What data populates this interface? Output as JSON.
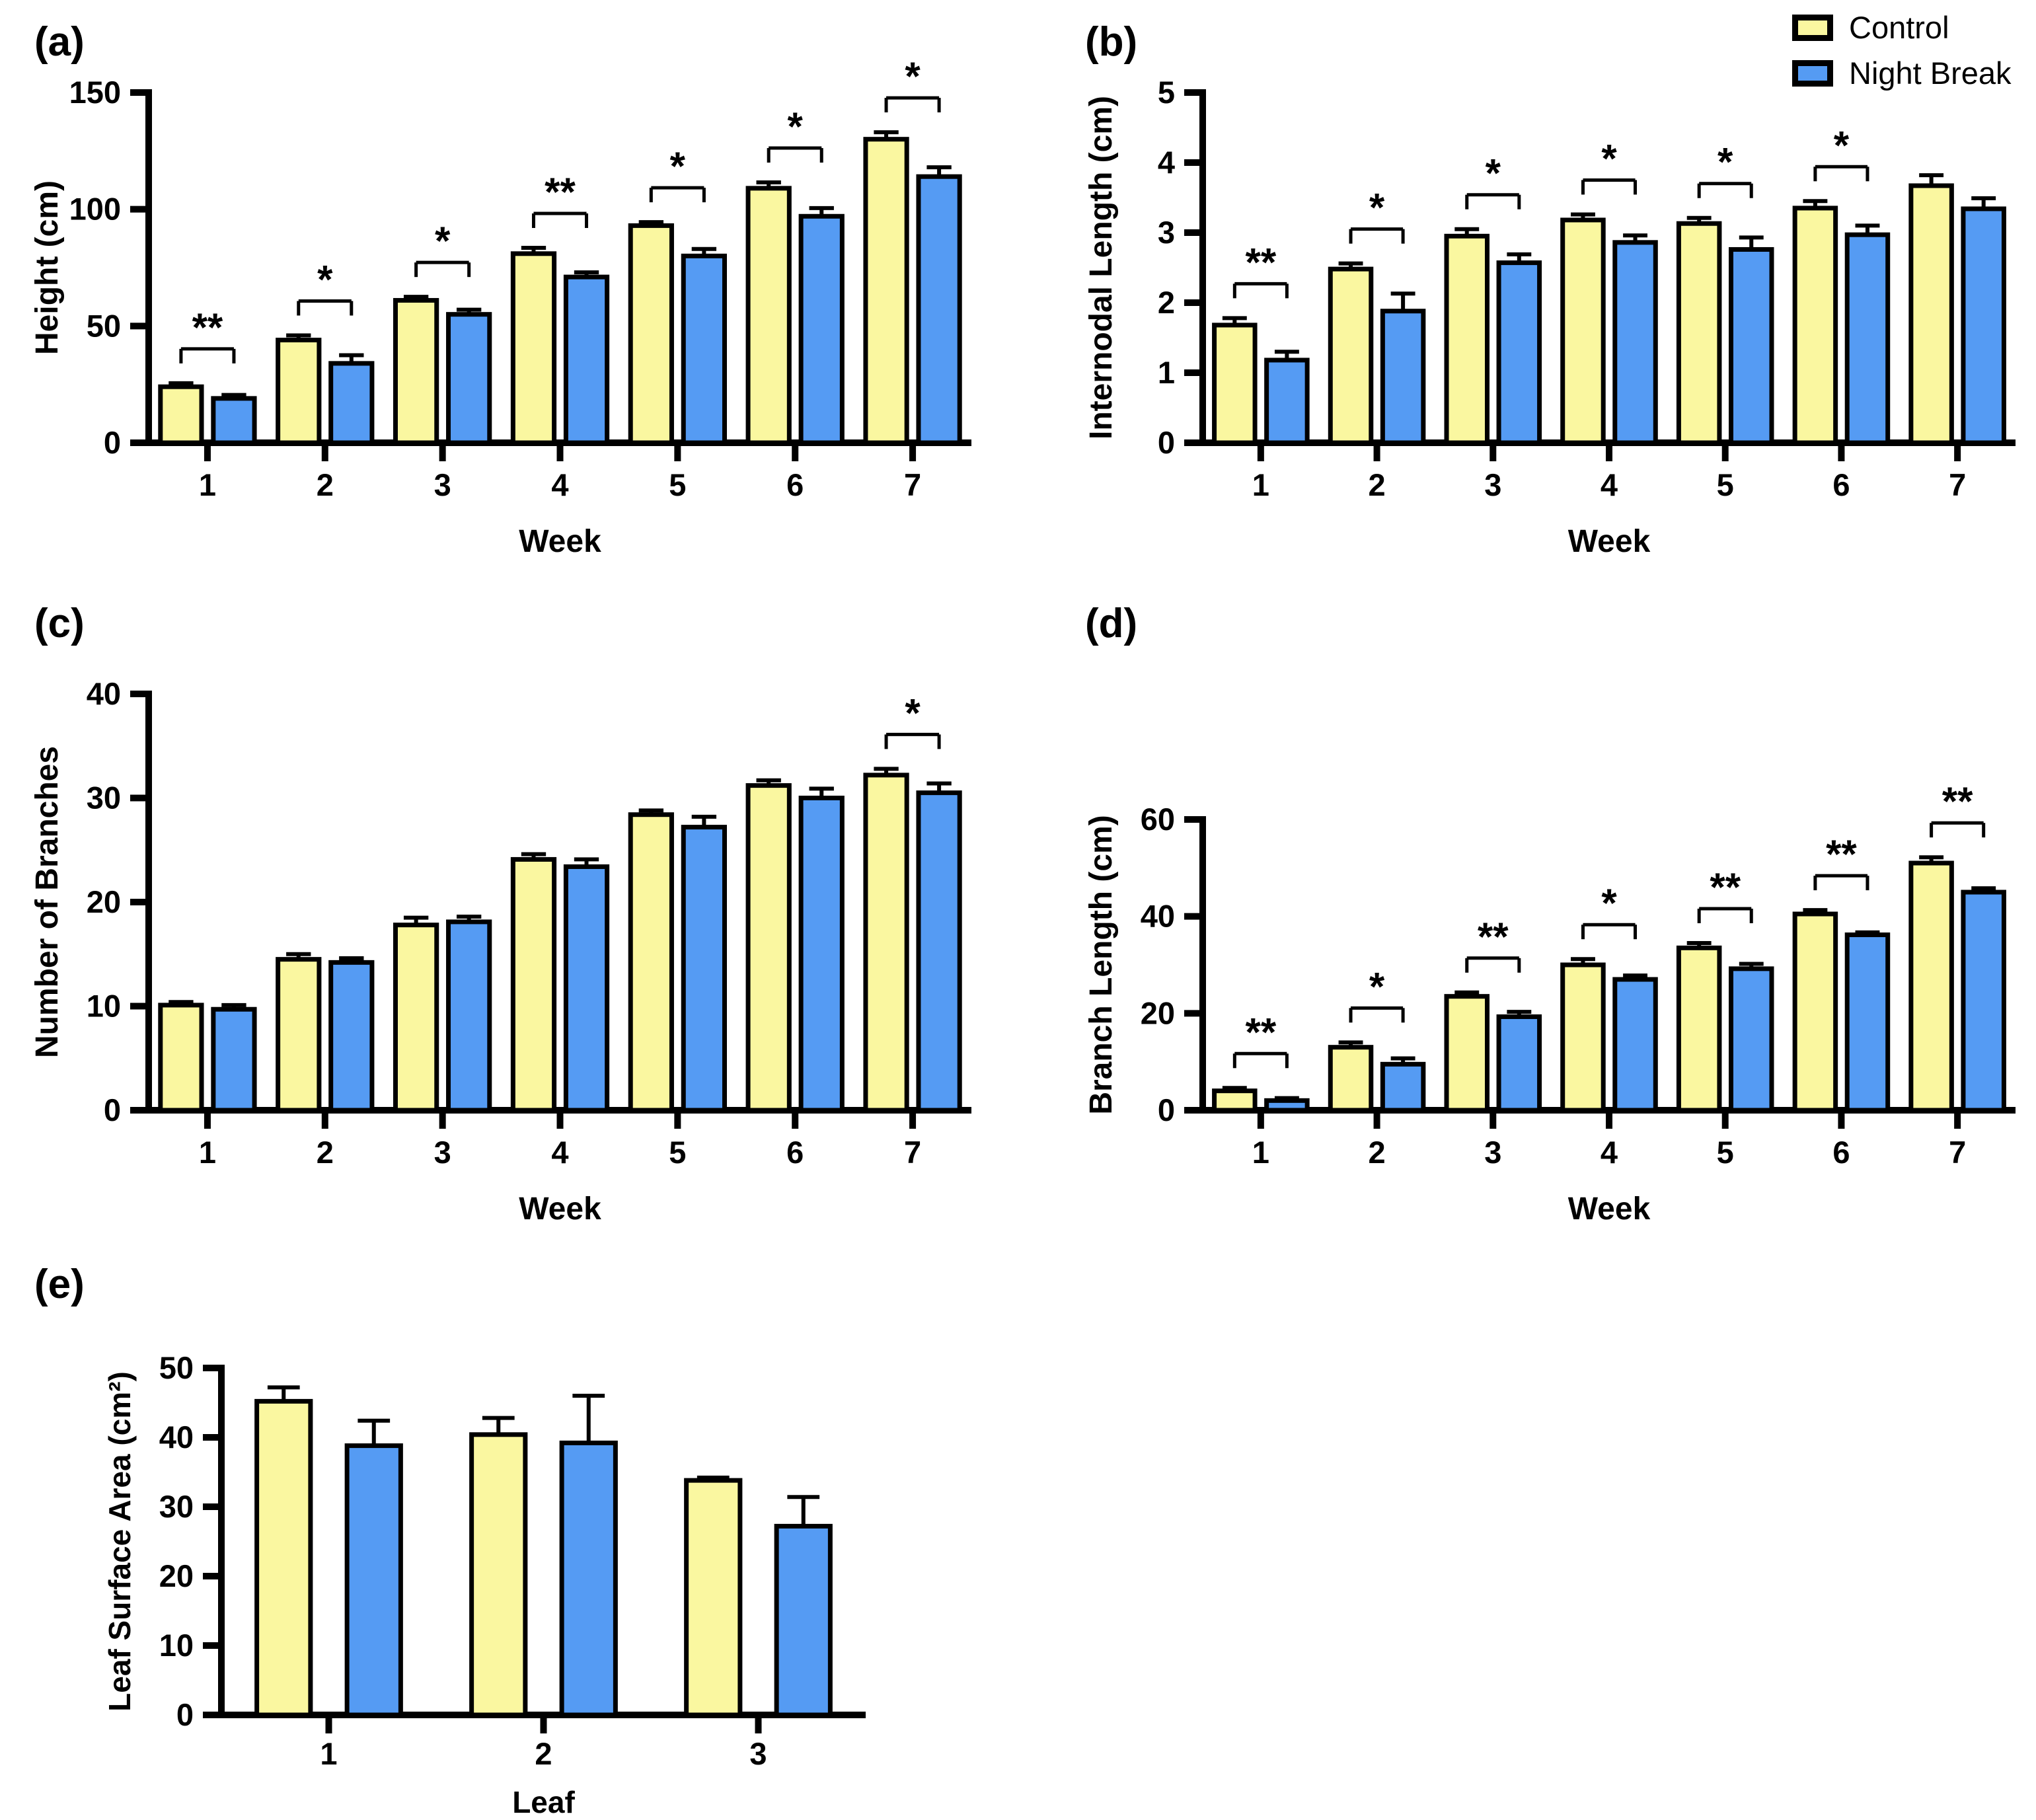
{
  "legend": {
    "items": [
      {
        "label": "Control",
        "color": "#FAF7A0"
      },
      {
        "label": "Night Break",
        "color": "#559BF3"
      }
    ]
  },
  "chart_data": [
    {
      "panel": "(a)",
      "type": "bar",
      "title": "",
      "xlabel": "Week",
      "ylabel": "Height (cm)",
      "categories": [
        "1",
        "2",
        "3",
        "4",
        "5",
        "6",
        "7"
      ],
      "ylim": [
        0,
        150
      ],
      "yticks": [
        0,
        50,
        100,
        150
      ],
      "grid": false,
      "legend_position": "none",
      "series": [
        {
          "name": "Control",
          "values": [
            24,
            44,
            61,
            81,
            93,
            109,
            130
          ],
          "errors": [
            1.5,
            2,
            1.5,
            2.5,
            1.5,
            2.5,
            3
          ]
        },
        {
          "name": "Night Break",
          "values": [
            19,
            34,
            55,
            71,
            80,
            97,
            114
          ],
          "errors": [
            1.5,
            3.5,
            2,
            2,
            3,
            3.5,
            4
          ]
        }
      ],
      "significance": [
        "**",
        "*",
        "*",
        "**",
        "*",
        "*",
        "*"
      ]
    },
    {
      "panel": "(b)",
      "type": "bar",
      "title": "",
      "xlabel": "Week",
      "ylabel": "Internodal Length (cm)",
      "categories": [
        "1",
        "2",
        "3",
        "4",
        "5",
        "6",
        "7"
      ],
      "ylim": [
        0,
        5
      ],
      "yticks": [
        0,
        1,
        2,
        3,
        4,
        5
      ],
      "grid": false,
      "legend_position": "top-right",
      "series": [
        {
          "name": "Control",
          "values": [
            1.68,
            2.48,
            2.95,
            3.18,
            3.13,
            3.35,
            3.67
          ],
          "errors": [
            0.1,
            0.08,
            0.1,
            0.08,
            0.08,
            0.1,
            0.15
          ]
        },
        {
          "name": "Night Break",
          "values": [
            1.18,
            1.88,
            2.57,
            2.86,
            2.76,
            2.97,
            3.34
          ],
          "errors": [
            0.12,
            0.25,
            0.12,
            0.1,
            0.17,
            0.13,
            0.15
          ]
        }
      ],
      "significance": [
        "**",
        "*",
        "*",
        "*",
        "*",
        "*",
        null
      ]
    },
    {
      "panel": "(c)",
      "type": "bar",
      "title": "",
      "xlabel": "Week",
      "ylabel": "Number of Branches",
      "categories": [
        "1",
        "2",
        "3",
        "4",
        "5",
        "6",
        "7"
      ],
      "ylim": [
        0,
        40
      ],
      "yticks": [
        0,
        10,
        20,
        30,
        40
      ],
      "grid": false,
      "legend_position": "none",
      "series": [
        {
          "name": "Control",
          "values": [
            10.1,
            14.5,
            17.8,
            24.1,
            28.4,
            31.2,
            32.2
          ],
          "errors": [
            0.3,
            0.5,
            0.7,
            0.5,
            0.4,
            0.5,
            0.6
          ]
        },
        {
          "name": "Night Break",
          "values": [
            9.7,
            14.2,
            18.1,
            23.4,
            27.2,
            30.0,
            30.5
          ],
          "errors": [
            0.4,
            0.4,
            0.5,
            0.7,
            1.0,
            0.9,
            0.9
          ]
        }
      ],
      "significance": [
        null,
        null,
        null,
        null,
        null,
        null,
        "*"
      ]
    },
    {
      "panel": "(d)",
      "type": "bar",
      "title": "",
      "xlabel": "Week",
      "ylabel": "Branch Length (cm)",
      "categories": [
        "1",
        "2",
        "3",
        "4",
        "5",
        "6",
        "7"
      ],
      "ylim": [
        0,
        60
      ],
      "yticks": [
        0,
        20,
        40,
        60
      ],
      "grid": false,
      "legend_position": "none",
      "series": [
        {
          "name": "Control",
          "values": [
            4,
            13,
            23.5,
            30,
            33.5,
            40.5,
            51
          ],
          "errors": [
            0.6,
            1.0,
            0.8,
            1.2,
            1.0,
            0.8,
            1.2
          ]
        },
        {
          "name": "Night Break",
          "values": [
            2,
            9.5,
            19.3,
            27,
            29.2,
            36.2,
            45
          ],
          "errors": [
            0.5,
            1.2,
            1.0,
            0.8,
            1.0,
            0.5,
            0.8
          ]
        }
      ],
      "significance": [
        "**",
        "*",
        "**",
        "*",
        "**",
        "**",
        "**"
      ]
    },
    {
      "panel": "(e)",
      "type": "bar",
      "title": "",
      "xlabel": "Leaf",
      "ylabel": "Leaf Surface Area (cm²)",
      "categories": [
        "1",
        "2",
        "3"
      ],
      "ylim": [
        0,
        50
      ],
      "yticks": [
        0,
        10,
        20,
        30,
        40,
        50
      ],
      "grid": false,
      "legend_position": "none",
      "series": [
        {
          "name": "Control",
          "values": [
            45.2,
            40.4,
            33.8
          ],
          "errors": [
            2.0,
            2.4,
            0.4
          ]
        },
        {
          "name": "Night Break",
          "values": [
            38.8,
            39.2,
            27.2
          ],
          "errors": [
            3.6,
            6.8,
            4.2
          ]
        }
      ],
      "significance": [
        null,
        null,
        null
      ]
    }
  ]
}
